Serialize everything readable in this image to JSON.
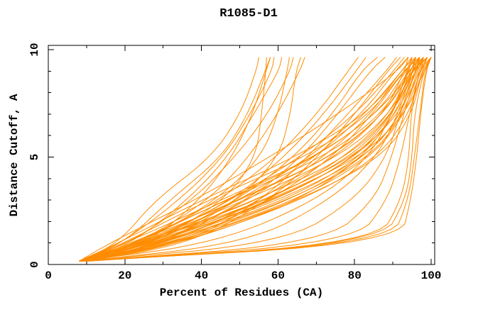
{
  "chart_data": {
    "type": "line",
    "title": "R1085-D1",
    "xlabel": "Percent of Residues (CA)",
    "ylabel": "Distance Cutoff, A",
    "xlim": [
      0,
      100
    ],
    "ylim": [
      0,
      10
    ],
    "grid": false,
    "legend": "none",
    "frame": "full-box-with-inward-ticks",
    "x_major_ticks": [
      0,
      20,
      40,
      60,
      80,
      100
    ],
    "x_minor_ticks": [
      10,
      30,
      50,
      70,
      90
    ],
    "y_major_ticks": [
      0,
      5,
      10
    ],
    "y_minor_ticks": [
      1,
      2,
      3,
      4,
      6,
      7,
      8,
      9
    ],
    "x_tick_labels": [
      "0",
      "20",
      "40",
      "60",
      "80",
      "100"
    ],
    "y_tick_labels": [
      "0",
      "5",
      "10"
    ],
    "curve_color": "#FF8C00",
    "axis_color": "#000000",
    "background_color": "#FFFFFF",
    "series_description": "Each curve is percent of CA residues (x) under a distance cutoff in Angstroms (y); curves start near (8, 0.15) and rise to y=9.65 at their terminal percent.",
    "anchor_y_levels": [
      0.15,
      1,
      3,
      5,
      7,
      9,
      9.65
    ],
    "series": [
      [
        8,
        18,
        28,
        43,
        50,
        54,
        55
      ],
      [
        8,
        20,
        32,
        45,
        52,
        57,
        58
      ],
      [
        9,
        22,
        36,
        47,
        54,
        60,
        61
      ],
      [
        8,
        21,
        38,
        49,
        57,
        63,
        64
      ],
      [
        9,
        24,
        42,
        52,
        60,
        66,
        67
      ],
      [
        8,
        19,
        34,
        46,
        53,
        58,
        59
      ],
      [
        10,
        26,
        40,
        48,
        53,
        57,
        58
      ],
      [
        9,
        28,
        46,
        54,
        56,
        57,
        57
      ],
      [
        8,
        24,
        44,
        56,
        60,
        62,
        63
      ],
      [
        10,
        30,
        50,
        60,
        63,
        65,
        66
      ],
      [
        8,
        24,
        55,
        75,
        88,
        93,
        94
      ],
      [
        8,
        26,
        58,
        78,
        89,
        94,
        95
      ],
      [
        9,
        28,
        60,
        80,
        90,
        94,
        95
      ],
      [
        8,
        30,
        62,
        82,
        91,
        95,
        96
      ],
      [
        9,
        32,
        64,
        83,
        92,
        95,
        96
      ],
      [
        8,
        25,
        57,
        79,
        90,
        95,
        96
      ],
      [
        9,
        27,
        59,
        81,
        91,
        96,
        97
      ],
      [
        10,
        29,
        61,
        83,
        92,
        96,
        97
      ],
      [
        8,
        31,
        63,
        84,
        93,
        97,
        98
      ],
      [
        9,
        33,
        65,
        85,
        93,
        97,
        98
      ],
      [
        10,
        35,
        67,
        86,
        94,
        98,
        99
      ],
      [
        8,
        28,
        56,
        80,
        92,
        97,
        99
      ],
      [
        9,
        30,
        58,
        82,
        93,
        98,
        100
      ],
      [
        10,
        34,
        66,
        87,
        95,
        98,
        100
      ],
      [
        8,
        22,
        50,
        74,
        88,
        94,
        97
      ],
      [
        9,
        24,
        52,
        76,
        89,
        95,
        99
      ],
      [
        10,
        26,
        54,
        78,
        90,
        96,
        99
      ],
      [
        8,
        20,
        45,
        70,
        86,
        93,
        96
      ],
      [
        9,
        22,
        47,
        72,
        87,
        94,
        98
      ],
      [
        10,
        24,
        49,
        74,
        88,
        95,
        99
      ],
      [
        8,
        18,
        40,
        65,
        83,
        92,
        95
      ],
      [
        9,
        20,
        42,
        67,
        84,
        93,
        97
      ],
      [
        10,
        23,
        46,
        70,
        86,
        95,
        98
      ],
      [
        8,
        26,
        48,
        66,
        80,
        90,
        93
      ],
      [
        9,
        28,
        50,
        68,
        82,
        91,
        94
      ],
      [
        10,
        30,
        52,
        70,
        83,
        92,
        95
      ],
      [
        8,
        32,
        56,
        72,
        84,
        92,
        96
      ],
      [
        9,
        34,
        58,
        74,
        85,
        93,
        97
      ],
      [
        8,
        25,
        48,
        62,
        72,
        80,
        83
      ],
      [
        9,
        27,
        50,
        64,
        74,
        82,
        86
      ],
      [
        10,
        29,
        52,
        66,
        76,
        84,
        88
      ],
      [
        8,
        23,
        45,
        60,
        70,
        78,
        81
      ],
      [
        8,
        36,
        66,
        82,
        90,
        94,
        96
      ],
      [
        8,
        44,
        70,
        84,
        90,
        95,
        97
      ],
      [
        9,
        52,
        74,
        86,
        91,
        95,
        97
      ],
      [
        8,
        62,
        80,
        88,
        92,
        96,
        98
      ],
      [
        9,
        72,
        85,
        90,
        93,
        96,
        98
      ],
      [
        8,
        80,
        89,
        92,
        94,
        97,
        99
      ],
      [
        10,
        86,
        92,
        94,
        95,
        97,
        100
      ],
      [
        8,
        89,
        94,
        96,
        97,
        98,
        100
      ],
      [
        8,
        92,
        95,
        96,
        97,
        99,
        100
      ],
      [
        9,
        87,
        93,
        95,
        96,
        98,
        100
      ],
      [
        9,
        36,
        56,
        68,
        78,
        88,
        91
      ],
      [
        10,
        38,
        58,
        70,
        80,
        89,
        92
      ],
      [
        8,
        16,
        38,
        58,
        76,
        91,
        94
      ]
    ]
  }
}
